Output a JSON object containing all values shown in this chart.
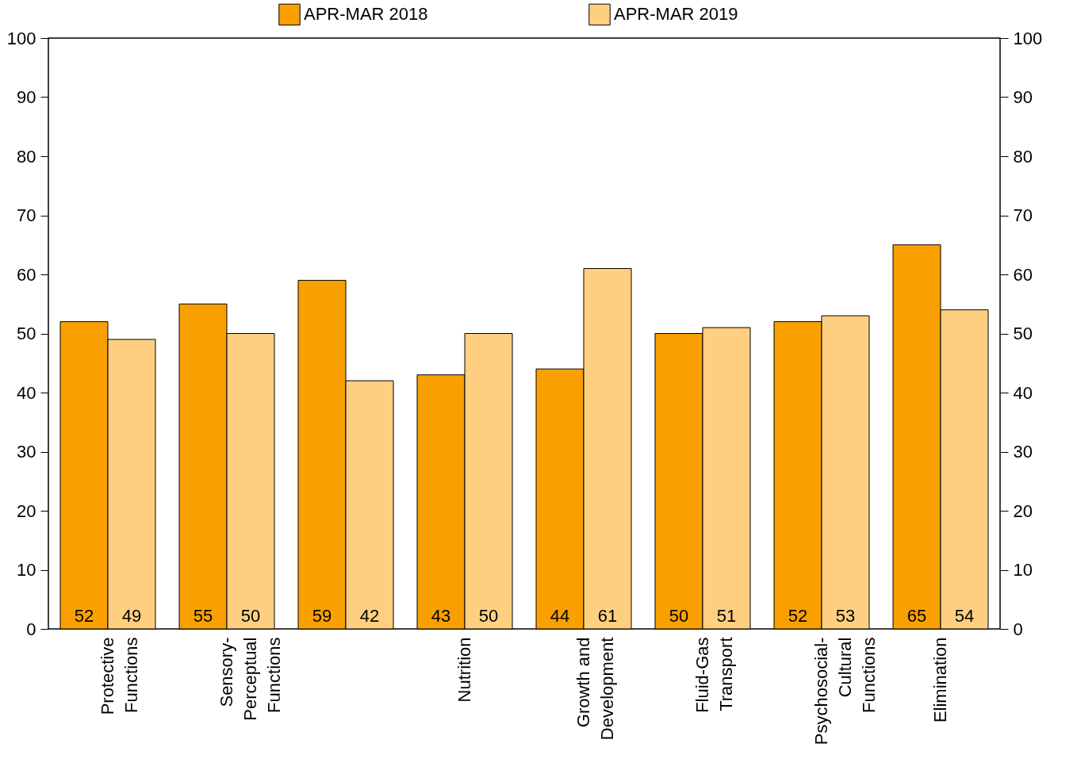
{
  "chart_data": {
    "type": "bar",
    "categories": [
      "Protective Functions",
      "Sensory-Perceptual Functions",
      null,
      "Nutrition",
      "Growth and Development",
      "Fluid-Gas Transport",
      "Psychosocial-Cultural Functions",
      "Elimination"
    ],
    "series": [
      {
        "name": "APR-MAR 2018",
        "color": "#f9a000",
        "values": [
          52,
          55,
          59,
          43,
          44,
          50,
          52,
          65
        ]
      },
      {
        "name": "APR-MAR 2019",
        "color": "#fecf80",
        "values": [
          49,
          50,
          42,
          50,
          61,
          51,
          53,
          54
        ]
      }
    ],
    "ylim": [
      0,
      100
    ],
    "yticks": [
      0,
      10,
      20,
      30,
      40,
      50,
      60,
      70,
      80,
      90,
      100
    ],
    "y2lim": [
      0,
      100
    ],
    "y2ticks": [
      0,
      10,
      20,
      30,
      40,
      50,
      60,
      70,
      80,
      90,
      100
    ],
    "data_labels": true,
    "grid": false,
    "legend": "top"
  }
}
